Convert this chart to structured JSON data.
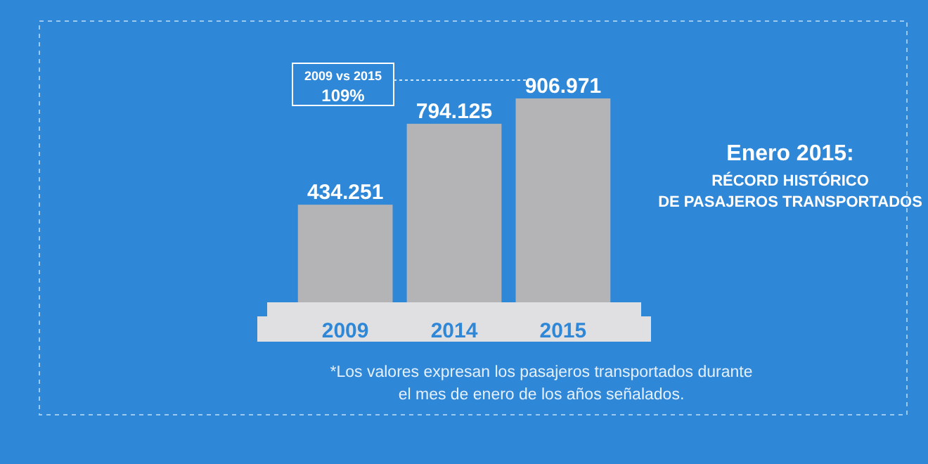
{
  "chart_data": {
    "type": "bar",
    "title": "Enero 2015:",
    "subtitle": "RÉCORD HISTÓRICO\nDE PASAJEROS TRANSPORTADOS",
    "categories": [
      "2009",
      "2014",
      "2015"
    ],
    "values": [
      434251,
      794125,
      906971
    ],
    "value_labels": [
      "434.251",
      "794.125",
      "906.971"
    ],
    "color": "#b4b4b6",
    "annotations": [
      "2009 vs 2015\n109%",
      "*Los valores expresan los pasajeros transportados durante\nel mes de enero de los años señalados."
    ]
  }
}
